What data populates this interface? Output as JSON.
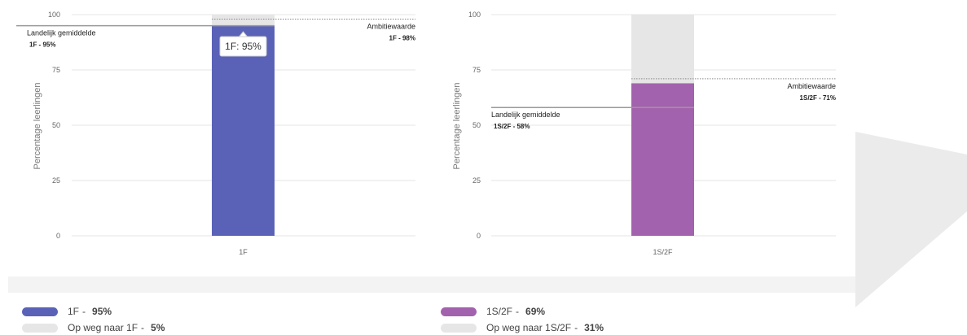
{
  "colors": {
    "blue": "#5a62b8",
    "purple": "#a362ad",
    "remainder": "#e6e6e6",
    "grid": "#e5e5e5",
    "avg_line": "#999999",
    "ambition_line": "#8a8a8a"
  },
  "chart_data": [
    {
      "type": "bar",
      "stacked": true,
      "categories": [
        "1F"
      ],
      "series": [
        {
          "name": "1F",
          "values": [
            95
          ],
          "color": "#5a62b8"
        },
        {
          "name": "Op weg naar 1F",
          "values": [
            5
          ],
          "color": "#e6e6e6"
        }
      ],
      "ylabel": "Percentage leerlingen",
      "ylim": [
        0,
        100
      ],
      "yticks": [
        0,
        25,
        50,
        75,
        100
      ],
      "grid": true,
      "reference_lines": [
        {
          "label": "Landelijk gemiddelde",
          "value_label": "1F - 95%",
          "value": 95,
          "style": "solid",
          "side": "left"
        },
        {
          "label": "Ambitiewaarde",
          "value_label": "1F - 98%",
          "value": 98,
          "style": "dotted",
          "side": "right"
        }
      ],
      "tooltip": "1F: 95%"
    },
    {
      "type": "bar",
      "stacked": true,
      "categories": [
        "1S/2F"
      ],
      "series": [
        {
          "name": "1S/2F",
          "values": [
            69
          ],
          "color": "#a362ad"
        },
        {
          "name": "Op weg naar 1S/2F",
          "values": [
            31
          ],
          "color": "#e6e6e6"
        }
      ],
      "ylabel": "Percentage leerlingen",
      "ylim": [
        0,
        100
      ],
      "yticks": [
        0,
        25,
        50,
        75,
        100
      ],
      "grid": true,
      "reference_lines": [
        {
          "label": "Landelijk gemiddelde",
          "value_label": "1S/2F - 58%",
          "value": 58,
          "style": "solid",
          "side": "left"
        },
        {
          "label": "Ambitiewaarde",
          "value_label": "1S/2F - 71%",
          "value": 71,
          "style": "dotted",
          "side": "right"
        }
      ]
    }
  ],
  "legend": [
    {
      "items": [
        {
          "name": "1F",
          "value": "95%",
          "color": "#5a62b8"
        },
        {
          "name": "Op weg naar 1F",
          "value": "5%",
          "color": "#e6e6e6"
        }
      ]
    },
    {
      "items": [
        {
          "name": "1S/2F",
          "value": "69%",
          "color": "#a362ad"
        },
        {
          "name": "Op weg naar 1S/2F",
          "value": "31%",
          "color": "#e6e6e6"
        }
      ]
    }
  ]
}
